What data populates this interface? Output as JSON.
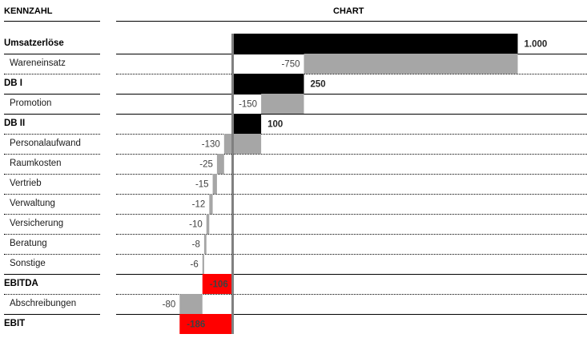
{
  "header": {
    "label_col": "KENNZAHL",
    "chart_col": "CHART"
  },
  "chart_data": {
    "type": "waterfall",
    "categories": [
      "Umsatzerlöse",
      "Wareneinsatz",
      "DB I",
      "Promotion",
      "DB II",
      "Personalaufwand",
      "Raumkosten",
      "Vertrieb",
      "Verwaltung",
      "Versicherung",
      "Beratung",
      "Sonstige",
      "EBITDA",
      "Abschreibungen",
      "EBIT"
    ],
    "kinds": [
      "total",
      "delta",
      "total",
      "delta",
      "total",
      "delta",
      "delta",
      "delta",
      "delta",
      "delta",
      "delta",
      "delta",
      "total",
      "delta",
      "total"
    ],
    "values": [
      1000,
      -750,
      250,
      -150,
      100,
      -130,
      -25,
      -15,
      -12,
      -10,
      -8,
      -6,
      -106,
      -80,
      -186
    ],
    "value_labels": [
      "1.000",
      "-750",
      "250",
      "-150",
      "100",
      "-130",
      "-25",
      "-15",
      "-12",
      "-10",
      "-8",
      "-6",
      "-106",
      "-80",
      "-186"
    ],
    "colors": {
      "total_positive": "#000000",
      "total_negative": "#ff0000",
      "delta": "#a6a6a6",
      "axis": "#808080"
    }
  }
}
